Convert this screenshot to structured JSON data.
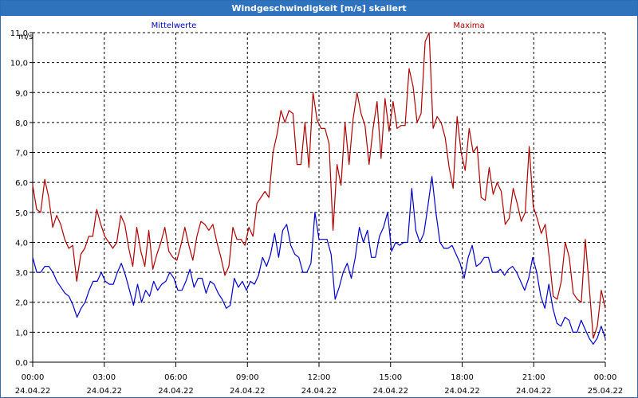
{
  "title": "Windgeschwindigkeit [m/s] skaliert",
  "colors": {
    "titlebar": "#2f73bf",
    "mean": "#0000cc",
    "max": "#b00000",
    "grid": "#000000"
  },
  "chart_data": {
    "type": "line",
    "title": "Windgeschwindigkeit [m/s] skaliert",
    "ylabel": "m/s",
    "xlabel": "",
    "ylim": [
      0,
      11
    ],
    "xlim_hours": [
      0,
      24
    ],
    "grid": true,
    "y_ticks": [
      "0,0",
      "1,0",
      "2,0",
      "3,0",
      "4,0",
      "5,0",
      "6,0",
      "7,0",
      "8,0",
      "9,0",
      "10,0",
      "11,0"
    ],
    "x_ticks": [
      {
        "time": "00:00",
        "date": "24.04.22"
      },
      {
        "time": "03:00",
        "date": "24.04.22"
      },
      {
        "time": "06:00",
        "date": "24.04.22"
      },
      {
        "time": "09:00",
        "date": "24.04.22"
      },
      {
        "time": "12:00",
        "date": "24.04.22"
      },
      {
        "time": "15:00",
        "date": "24.04.22"
      },
      {
        "time": "18:00",
        "date": "24.04.22"
      },
      {
        "time": "21:00",
        "date": "24.04.22"
      },
      {
        "time": "00:00",
        "date": "25.04.22"
      }
    ],
    "series": [
      {
        "name": "Mittelwerte",
        "color": "#0000cc",
        "values": [
          3.5,
          3.0,
          3.0,
          3.2,
          3.2,
          3.0,
          2.7,
          2.5,
          2.3,
          2.2,
          1.9,
          1.5,
          1.8,
          2.0,
          2.4,
          2.7,
          2.7,
          3.0,
          2.7,
          2.6,
          2.6,
          3.0,
          3.3,
          2.9,
          2.4,
          1.9,
          2.6,
          2.0,
          2.4,
          2.2,
          2.7,
          2.4,
          2.6,
          2.7,
          3.0,
          2.8,
          2.4,
          2.4,
          2.7,
          3.1,
          2.5,
          2.8,
          2.8,
          2.3,
          2.7,
          2.6,
          2.3,
          2.1,
          1.8,
          1.9,
          2.8,
          2.5,
          2.7,
          2.4,
          2.7,
          2.6,
          2.9,
          3.5,
          3.2,
          3.6,
          4.3,
          3.5,
          4.4,
          4.6,
          3.9,
          3.6,
          3.5,
          3.0,
          3.0,
          3.3,
          5.0,
          4.1,
          4.1,
          4.1,
          3.6,
          2.1,
          2.5,
          3.0,
          3.3,
          2.8,
          3.5,
          4.5,
          4.0,
          4.4,
          3.5,
          3.5,
          4.2,
          4.5,
          5.0,
          3.7,
          4.0,
          3.9,
          4.0,
          4.0,
          5.8,
          4.4,
          4.0,
          4.3,
          5.2,
          6.2,
          5.0,
          4.0,
          3.8,
          3.8,
          3.9,
          3.6,
          3.3,
          2.8,
          3.5,
          3.9,
          3.2,
          3.3,
          3.5,
          3.5,
          3.0,
          3.0,
          3.1,
          2.9,
          3.1,
          3.2,
          3.0,
          2.7,
          2.4,
          2.8,
          3.5,
          3.0,
          2.2,
          1.8,
          2.6,
          1.8,
          1.3,
          1.2,
          1.5,
          1.4,
          1.0,
          1.0,
          1.4,
          1.1,
          0.8,
          0.6,
          0.8,
          1.2,
          0.8
        ]
      },
      {
        "name": "Maxima",
        "color": "#b00000",
        "values": [
          5.9,
          5.1,
          5.0,
          6.1,
          5.5,
          4.5,
          4.9,
          4.6,
          4.1,
          3.8,
          3.9,
          2.7,
          3.6,
          3.8,
          4.2,
          4.2,
          5.1,
          4.6,
          4.2,
          4.0,
          3.8,
          4.0,
          4.9,
          4.6,
          3.8,
          3.2,
          4.5,
          3.7,
          3.2,
          4.4,
          3.1,
          3.6,
          4.0,
          4.5,
          3.7,
          3.5,
          3.4,
          3.9,
          4.5,
          3.9,
          3.4,
          4.2,
          4.7,
          4.6,
          4.4,
          4.6,
          4.0,
          3.5,
          2.9,
          3.2,
          4.5,
          4.1,
          4.1,
          3.9,
          4.5,
          4.2,
          5.3,
          5.5,
          5.7,
          5.5,
          7.0,
          7.6,
          8.4,
          8.0,
          8.4,
          8.3,
          6.6,
          6.6,
          8.0,
          6.5,
          9.0,
          8.1,
          7.8,
          7.8,
          7.3,
          4.4,
          6.6,
          5.9,
          8.0,
          6.6,
          8.1,
          9.0,
          8.3,
          7.9,
          6.6,
          7.8,
          8.7,
          6.8,
          8.8,
          7.7,
          8.7,
          7.8,
          7.9,
          7.9,
          9.8,
          9.2,
          8.0,
          8.3,
          10.7,
          11.0,
          7.8,
          8.2,
          8.0,
          7.5,
          6.5,
          5.8,
          8.2,
          7.0,
          6.4,
          7.8,
          7.0,
          7.2,
          5.5,
          5.4,
          6.5,
          5.6,
          6.0,
          5.7,
          4.6,
          4.8,
          5.8,
          5.3,
          4.7,
          5.0,
          7.2,
          5.2,
          4.8,
          4.3,
          4.6,
          3.5,
          2.2,
          2.1,
          2.7,
          4.0,
          3.5,
          2.3,
          2.1,
          2.0,
          4.1,
          2.5,
          0.8,
          1.2,
          2.4,
          1.8
        ]
      }
    ]
  }
}
